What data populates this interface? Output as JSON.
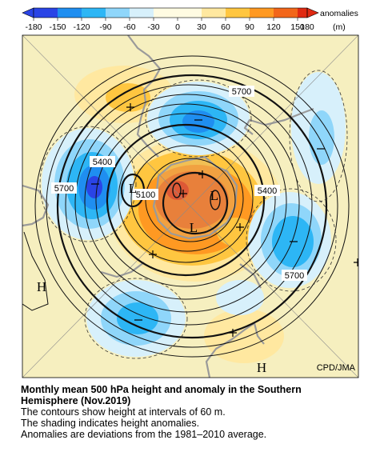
{
  "legend": {
    "ticks": [
      "-180",
      "-150",
      "-120",
      "-90",
      "-60",
      "-30",
      "0",
      "30",
      "60",
      "90",
      "120",
      "150",
      "180"
    ],
    "label": "anomalies",
    "unit": "(m)",
    "colors": [
      "#2a44e6",
      "#1f8ef0",
      "#2db6f5",
      "#8fd6fa",
      "#d7f0fb",
      "#fffbe2",
      "#ffe8a0",
      "#ffc640",
      "#ff9922",
      "#f2661a",
      "#e02a12"
    ]
  },
  "map": {
    "contour_labels": [
      "5700",
      "5400",
      "5700",
      "5100",
      "5400",
      "5700"
    ],
    "pressure_centers": [
      "L",
      "L",
      "L",
      "H",
      "H"
    ],
    "credit": "CPD/JMA",
    "palette": {
      "background": "#f6efbf",
      "land": "#9a9a9a",
      "contour": "#111111"
    }
  },
  "caption": {
    "title_line1": "Monthly mean 500 hPa height and anomaly in the Southern",
    "title_line2": "Hemisphere (Nov.2019)",
    "line1": "The contours show height at intervals of 60 m.",
    "line2": "The shading indicates height anomalies.",
    "line3": "Anomalies are deviations from the 1981–2010 average."
  }
}
